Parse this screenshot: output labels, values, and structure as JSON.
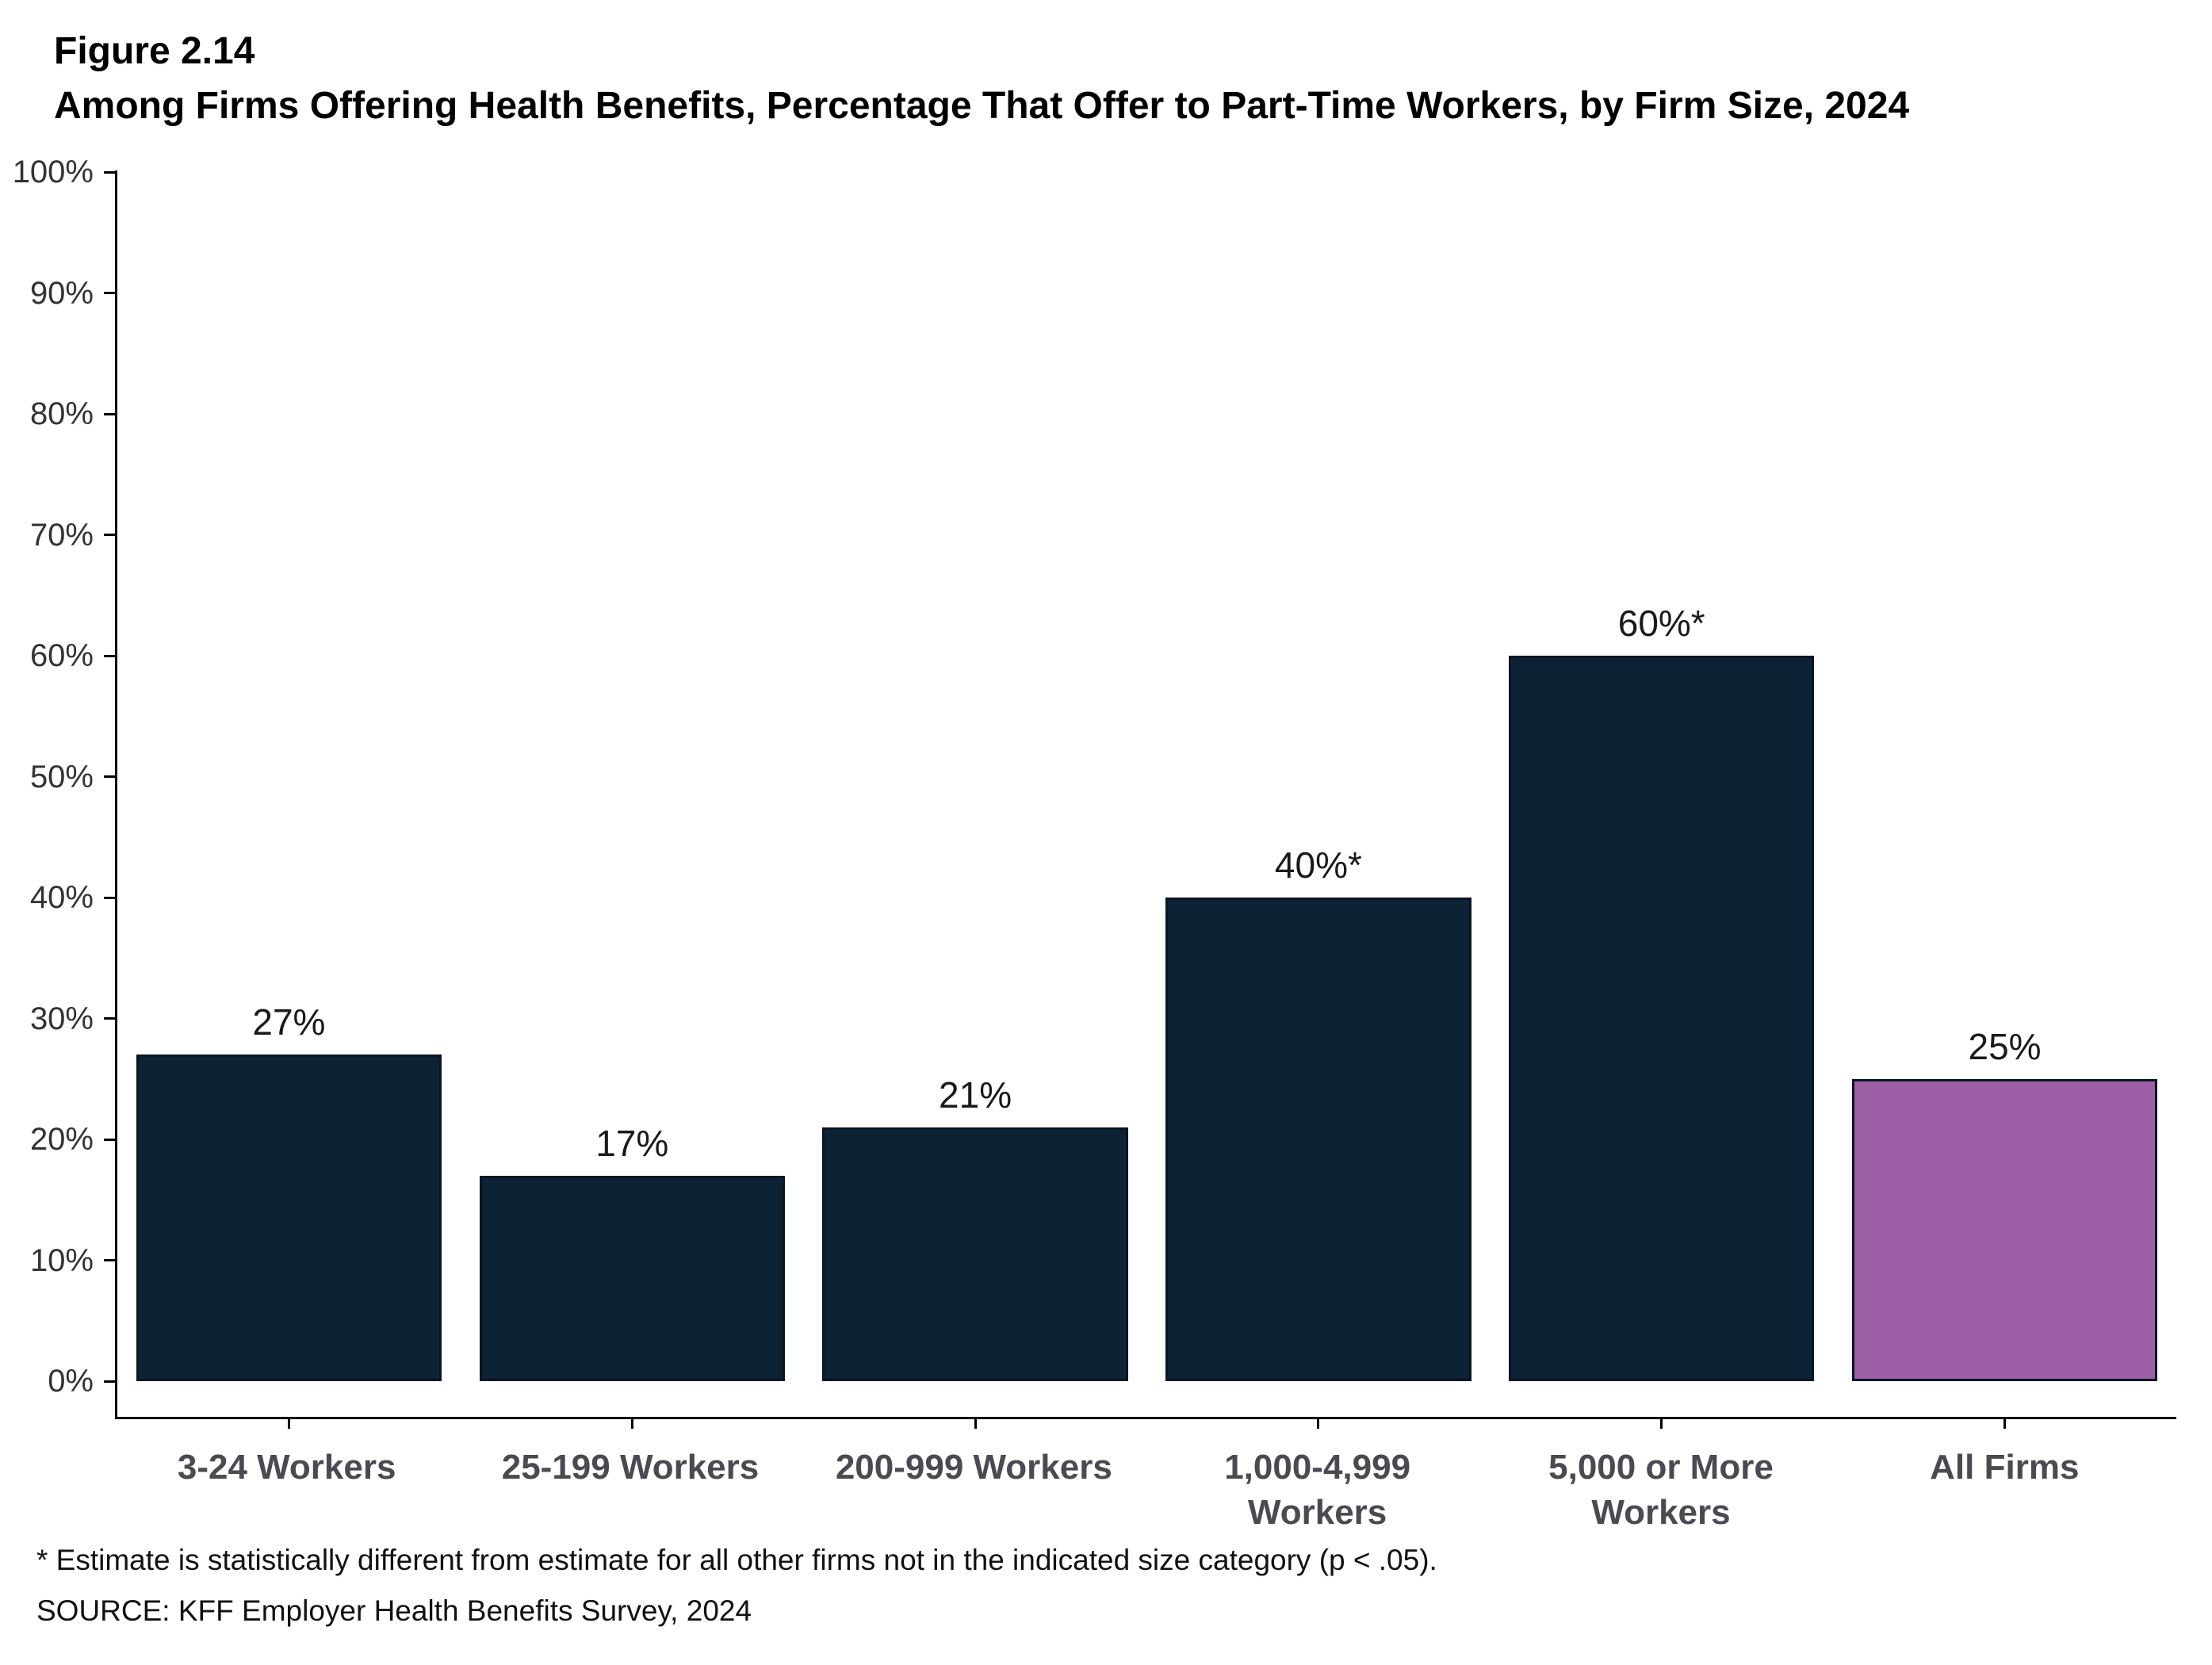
{
  "header": {
    "figure_number": "Figure 2.14",
    "title": "Among Firms Offering Health Benefits, Percentage That Offer to Part-Time Workers, by Firm Size, 2024"
  },
  "chart_data": {
    "type": "bar",
    "title": "Among Firms Offering Health Benefits, Percentage That Offer to Part-Time Workers, by Firm Size, 2024",
    "categories": [
      "3-24 Workers",
      "25-199 Workers",
      "200-999 Workers",
      "1,000-4,999 Workers",
      "5,000 or More Workers",
      "All Firms"
    ],
    "values": [
      27,
      17,
      21,
      40,
      60,
      25
    ],
    "value_labels": [
      "27%",
      "17%",
      "21%",
      "40%*",
      "60%*",
      "25%"
    ],
    "bar_colors": [
      "#0E2235",
      "#0E2235",
      "#0E2235",
      "#0E2235",
      "#0E2235",
      "#9C5FA6"
    ],
    "bar_border_color": "#0A1623",
    "xlabel": "",
    "ylabel": "",
    "ylim": [
      0,
      100
    ],
    "y_tick_values": [
      0,
      10,
      20,
      30,
      40,
      50,
      60,
      70,
      80,
      90,
      100
    ],
    "y_tick_labels": [
      "0%",
      "10%",
      "20%",
      "30%",
      "40%",
      "50%",
      "60%",
      "70%",
      "80%",
      "90%",
      "100%"
    ],
    "grid": false,
    "legend": false
  },
  "footnotes": {
    "note": "* Estimate is statistically different from estimate for all other firms not in the indicated size category (p < .05).",
    "source": "SOURCE: KFF Employer Health Benefits Survey, 2024"
  }
}
